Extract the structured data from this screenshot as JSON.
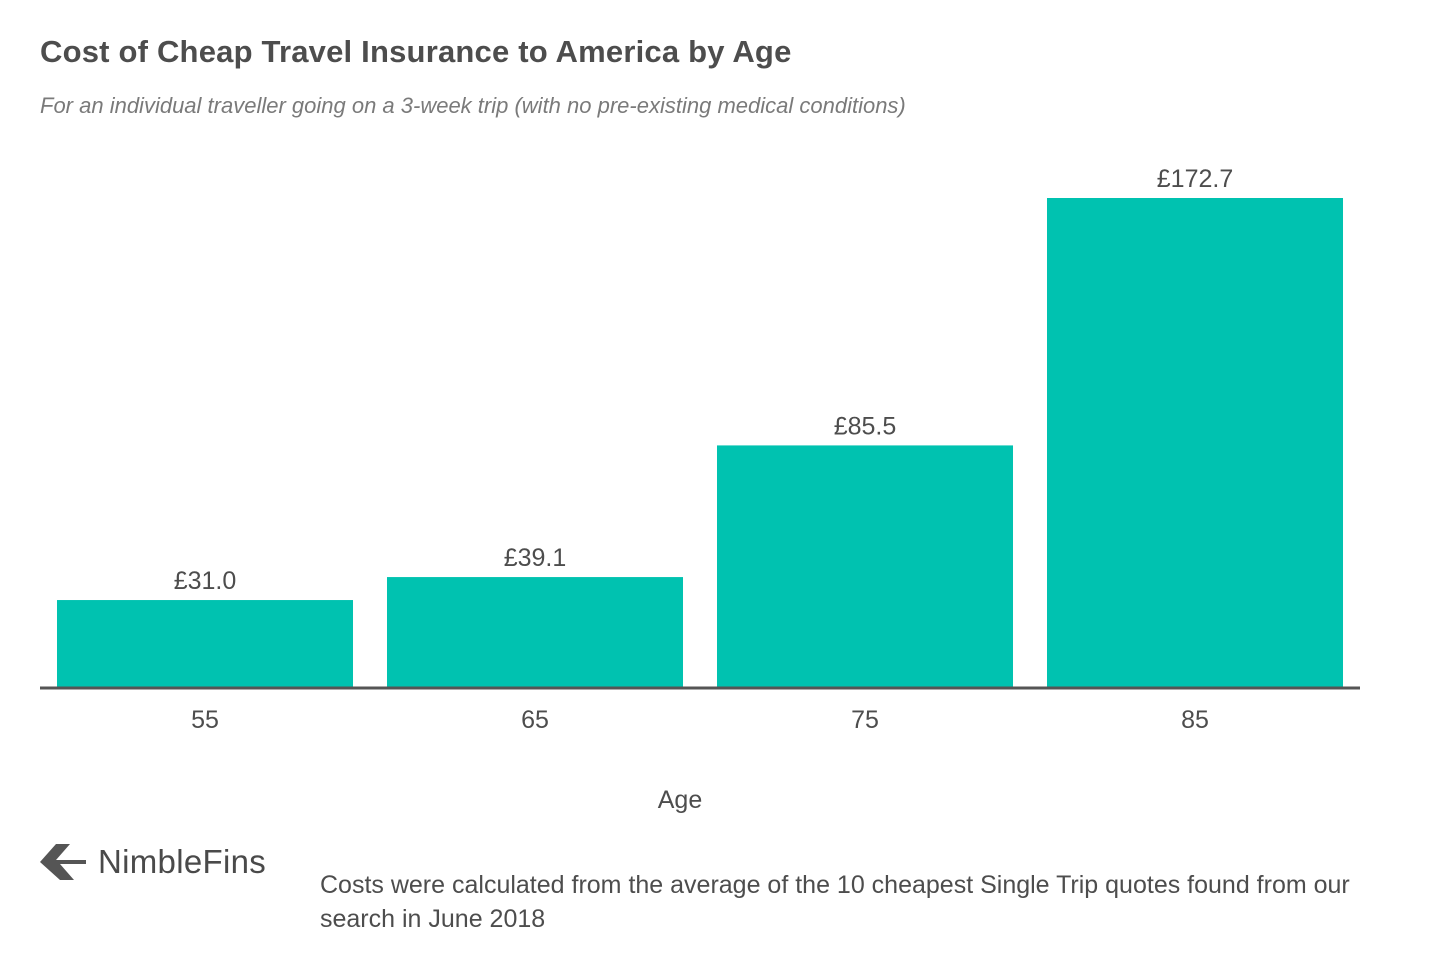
{
  "header": {
    "title": "Cost of Cheap Travel Insurance to America by Age",
    "subtitle": "For an individual traveller going on a 3-week trip (with no pre-existing medical conditions)"
  },
  "chart_data": {
    "type": "bar",
    "categories": [
      "55",
      "65",
      "75",
      "85"
    ],
    "values": [
      31.0,
      39.1,
      85.5,
      172.7
    ],
    "data_labels": [
      "£31.0",
      "£39.1",
      "£85.5",
      "£172.7"
    ],
    "xlabel": "Age",
    "ylabel": "",
    "ylim": [
      0,
      172.7
    ],
    "grid": false,
    "bar_color": "#00c2b0",
    "axis_color": "#555555"
  },
  "brand": {
    "name": "NimbleFins",
    "logo_icon": "chevron-left-logo-icon"
  },
  "footnote": "Costs were calculated from the average of the 10 cheapest Single Trip quotes found from our search in June 2018"
}
